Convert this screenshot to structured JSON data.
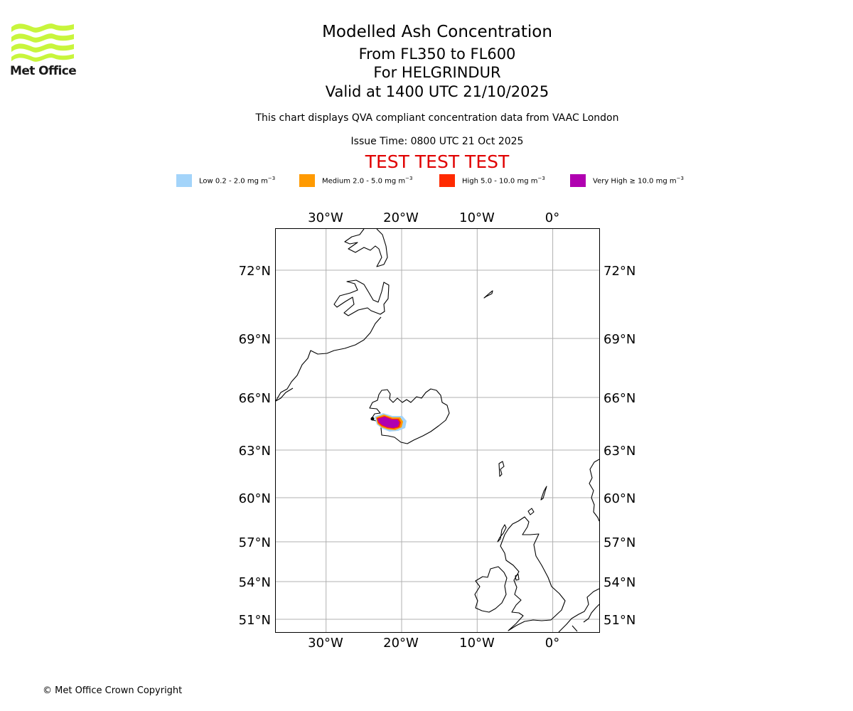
{
  "header": {
    "logo_text": "Met Office",
    "title": "Modelled Ash Concentration",
    "levels": "From FL350 to FL600",
    "volcano": "For HELGRINDUR",
    "valid": "Valid at 1400 UTC 21/10/2025",
    "compliance": "This chart displays QVA compliant concentration data from VAAC London",
    "issue_time": "Issue Time: 0800 UTC 21 Oct 2025",
    "test_banner": "TEST TEST TEST"
  },
  "legend": [
    {
      "label": "Low 0.2 - 2.0 mg m",
      "color": "#a3d4fa"
    },
    {
      "label": "Medium 2.0 - 5.0 mg m",
      "color": "#ff9a00"
    },
    {
      "label": "High 5.0 - 10.0 mg m",
      "color": "#ff2a00"
    },
    {
      "label": "Very High ≥ 10.0 mg m",
      "color": "#b000b0"
    }
  ],
  "legend_unit_exponent": "−3",
  "map": {
    "lon_labels": [
      "30°W",
      "20°W",
      "10°W",
      "0°"
    ],
    "lat_labels": [
      "72°N",
      "69°N",
      "66°N",
      "63°N",
      "60°N",
      "57°N",
      "54°N",
      "51°N"
    ],
    "longitudes": [
      -30,
      -20,
      -10,
      0
    ],
    "latitudes": [
      72,
      69,
      66,
      63,
      60,
      57,
      54,
      51
    ],
    "extent": {
      "lon_min": -36.7,
      "lon_max": 6.2,
      "lat_min": 50.0,
      "lat_max": 73.6
    }
  },
  "footer": {
    "copyright": "© Met Office Crown Copyright"
  },
  "colors": {
    "test": "#e00000",
    "grid": "#b0b0b0",
    "logo": "#c8f53c"
  }
}
